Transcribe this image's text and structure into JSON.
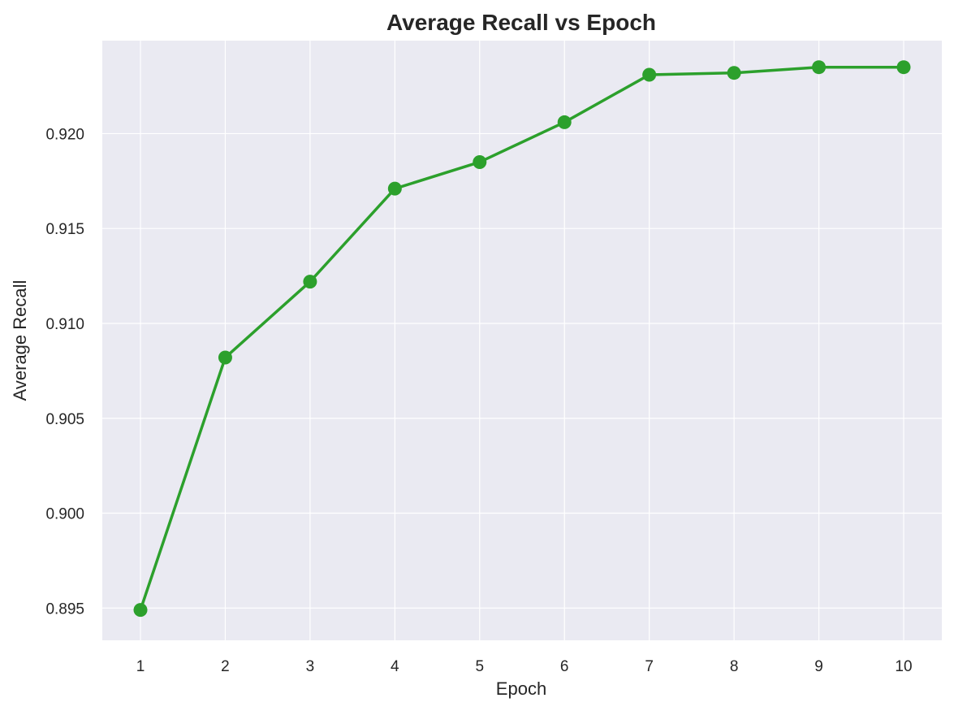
{
  "chart_data": {
    "type": "line",
    "title": "Average Recall vs Epoch",
    "xlabel": "Epoch",
    "ylabel": "Average Recall",
    "x": [
      1,
      2,
      3,
      4,
      5,
      6,
      7,
      8,
      9,
      10
    ],
    "x_tick_labels": [
      "1",
      "2",
      "3",
      "4",
      "5",
      "6",
      "7",
      "8",
      "9",
      "10"
    ],
    "series": [
      {
        "values": [
          0.8949,
          0.9082,
          0.9122,
          0.9171,
          0.9185,
          0.9206,
          0.9231,
          0.9232,
          0.9235,
          0.9235
        ],
        "color": "#2ca02c",
        "marker": "circle"
      }
    ],
    "y_ticks": [
      0.895,
      0.9,
      0.905,
      0.91,
      0.915,
      0.92
    ],
    "y_tick_labels": [
      "0.895",
      "0.900",
      "0.905",
      "0.910",
      "0.915",
      "0.920"
    ],
    "xlim": [
      0.55,
      10.45
    ],
    "ylim": [
      0.8933,
      0.9249
    ],
    "grid": true,
    "plot_background": "#eaeaf2",
    "grid_color": "#ffffff",
    "text_color": "#262626"
  }
}
